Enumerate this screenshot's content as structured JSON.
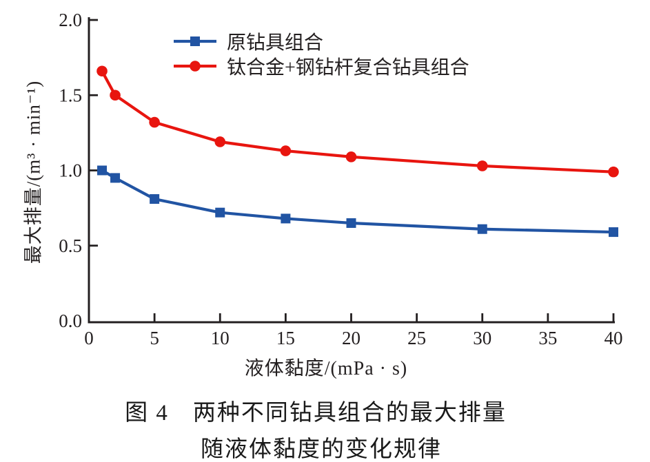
{
  "figure": {
    "caption_line1": "图 4　两种不同钻具组合的最大排量",
    "caption_line2": "随液体黏度的变化规律"
  },
  "chart_data": {
    "type": "line",
    "title": "",
    "xlabel": "液体黏度/(mPa · s)",
    "ylabel": "最大排量/(m³ · min⁻¹)",
    "xlim": [
      0,
      40
    ],
    "ylim": [
      0.0,
      2.0
    ],
    "xticks": [
      0,
      5,
      10,
      15,
      20,
      25,
      30,
      35,
      40
    ],
    "ytick_labels": [
      "0.0",
      "0.5",
      "1.0",
      "1.5",
      "2.0"
    ],
    "grid": false,
    "legend_position": "top-left-inside",
    "axis_color": "#231f20",
    "x": [
      1,
      2,
      5,
      10,
      15,
      20,
      30,
      40
    ],
    "series": [
      {
        "name": "原钻具组合",
        "color": "#2154a3",
        "marker": "square",
        "values": [
          1.0,
          0.95,
          0.81,
          0.72,
          0.68,
          0.65,
          0.61,
          0.59
        ]
      },
      {
        "name": "钛合金+钢钻杆复合钻具组合",
        "color": "#e8150f",
        "marker": "circle",
        "values": [
          1.66,
          1.5,
          1.32,
          1.19,
          1.13,
          1.09,
          1.03,
          0.99
        ]
      }
    ]
  }
}
